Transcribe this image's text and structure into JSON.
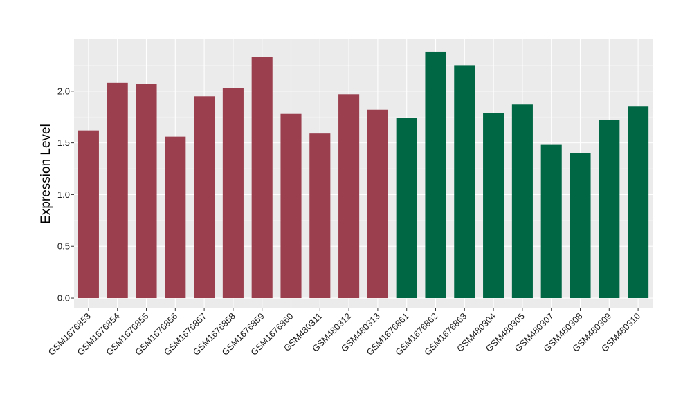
{
  "chart_data": {
    "type": "bar",
    "xlabel": "",
    "ylabel": "Expression Level",
    "ylim": [
      -0.1,
      2.5
    ],
    "yticks": [
      0.0,
      0.5,
      1.0,
      1.5,
      2.0
    ],
    "ytick_labels": [
      "0.0",
      "0.5",
      "1.0",
      "1.5",
      "2.0"
    ],
    "grid": true,
    "background": "#EBEBEB",
    "categories": [
      "GSM1676853",
      "GSM1676854",
      "GSM1676855",
      "GSM1676856",
      "GSM1676857",
      "GSM1676858",
      "GSM1676859",
      "GSM1676860",
      "GSM480311",
      "GSM480312",
      "GSM480313",
      "GSM1676861",
      "GSM1676862",
      "GSM1676863",
      "GSM480304",
      "GSM480305",
      "GSM480307",
      "GSM480308",
      "GSM480309",
      "GSM480310"
    ],
    "values": [
      1.62,
      2.08,
      2.07,
      1.56,
      1.95,
      2.03,
      2.33,
      1.78,
      1.59,
      1.97,
      1.82,
      1.74,
      2.38,
      2.25,
      1.79,
      1.87,
      1.48,
      1.4,
      1.72,
      1.85
    ],
    "groups": [
      0,
      0,
      0,
      0,
      0,
      0,
      0,
      0,
      0,
      0,
      0,
      1,
      1,
      1,
      1,
      1,
      1,
      1,
      1,
      1
    ],
    "group_colors": [
      "#9B3F4F",
      "#006745"
    ]
  }
}
